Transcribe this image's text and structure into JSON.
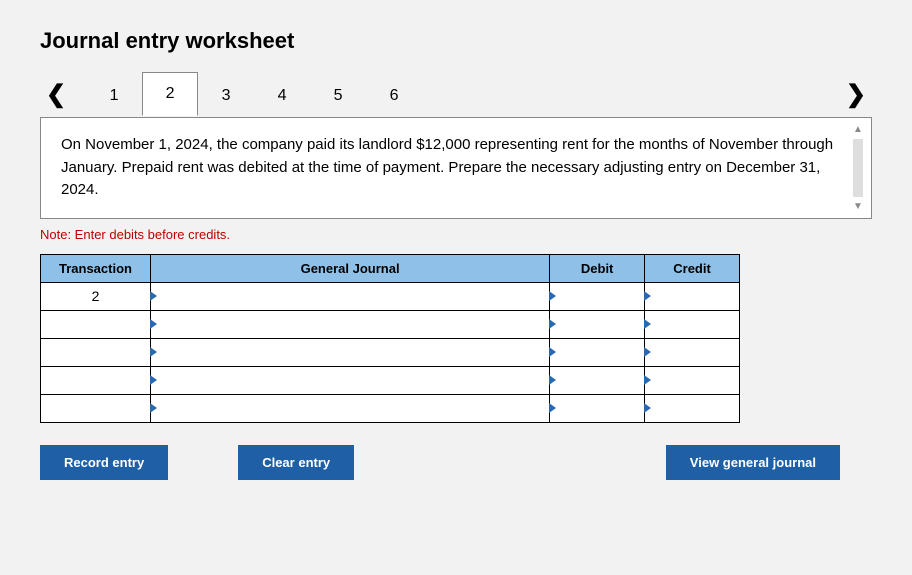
{
  "title": "Journal entry worksheet",
  "tabs": {
    "items": [
      "1",
      "2",
      "3",
      "4",
      "5",
      "6"
    ],
    "activeIndex": 1
  },
  "prompt": "On November 1, 2024, the company paid its landlord $12,000 representing rent for the months of November through January. Prepaid rent was debited at the time of payment. Prepare the necessary adjusting entry on December 31, 2024.",
  "note": "Note: Enter debits before credits.",
  "table": {
    "headers": {
      "transaction": "Transaction",
      "generalJournal": "General Journal",
      "debit": "Debit",
      "credit": "Credit"
    },
    "rows": [
      {
        "transaction": "2",
        "gj": "",
        "debit": "",
        "credit": ""
      },
      {
        "transaction": "",
        "gj": "",
        "debit": "",
        "credit": ""
      },
      {
        "transaction": "",
        "gj": "",
        "debit": "",
        "credit": ""
      },
      {
        "transaction": "",
        "gj": "",
        "debit": "",
        "credit": ""
      },
      {
        "transaction": "",
        "gj": "",
        "debit": "",
        "credit": ""
      }
    ]
  },
  "buttons": {
    "record": "Record entry",
    "clear": "Clear entry",
    "view": "View general journal"
  },
  "colors": {
    "headerBg": "#8fc1e8",
    "buttonBg": "#1e5fa6",
    "noteColor": "#c00000",
    "pageBg": "#f2f2f2",
    "dropdownArrow": "#2a68b0"
  }
}
